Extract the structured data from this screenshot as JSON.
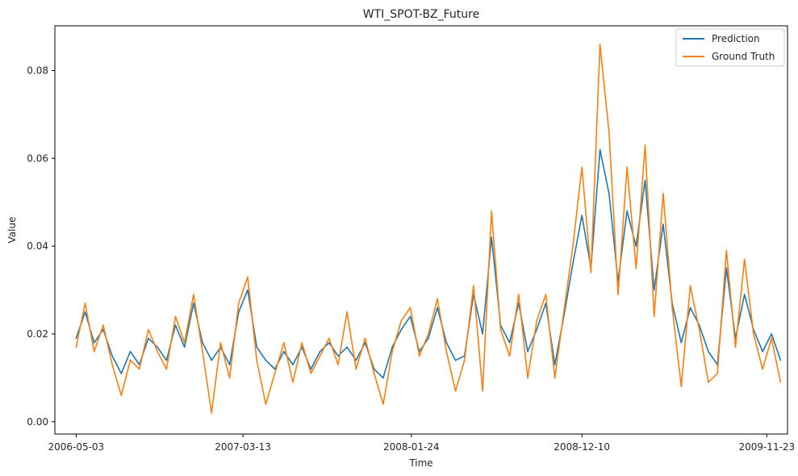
{
  "chart_data": {
    "type": "line",
    "title": "WTI_SPOT-BZ_Future",
    "xlabel": "Time",
    "ylabel": "Value",
    "x_tick_labels": [
      "2006-05-03",
      "2007-03-13",
      "2008-01-24",
      "2008-12-10",
      "2009-11-23"
    ],
    "y_tick_labels": [
      "0.00",
      "0.02",
      "0.04",
      "0.06",
      "0.08"
    ],
    "y_ticks": [
      0.0,
      0.02,
      0.04,
      0.06,
      0.08
    ],
    "ylim": [
      -0.0028,
      0.0902
    ],
    "xlim": [
      "2006-03-24",
      "2010-01-01"
    ],
    "grid": false,
    "legend_position": "top-right",
    "colors": {
      "Prediction": "#1f77b4",
      "Ground Truth": "#ff7f0e"
    },
    "series": [
      {
        "name": "Prediction",
        "color": "#1f77b4",
        "x": [
          "2006-05-03",
          "2006-05-20",
          "2006-06-06",
          "2006-06-23",
          "2006-07-10",
          "2006-07-27",
          "2006-08-13",
          "2006-08-30",
          "2006-09-16",
          "2006-10-03",
          "2006-10-20",
          "2006-11-06",
          "2006-11-23",
          "2006-12-10",
          "2006-12-27",
          "2007-01-13",
          "2007-01-30",
          "2007-02-16",
          "2007-03-05",
          "2007-03-22",
          "2007-04-08",
          "2007-04-25",
          "2007-05-12",
          "2007-05-29",
          "2007-06-15",
          "2007-07-02",
          "2007-07-19",
          "2007-08-05",
          "2007-08-22",
          "2007-09-08",
          "2007-09-25",
          "2007-10-12",
          "2007-10-29",
          "2007-11-15",
          "2007-12-02",
          "2007-12-19",
          "2008-01-05",
          "2008-01-22",
          "2008-02-08",
          "2008-02-25",
          "2008-03-13",
          "2008-03-30",
          "2008-04-16",
          "2008-05-03",
          "2008-05-20",
          "2008-06-06",
          "2008-06-23",
          "2008-07-10",
          "2008-07-27",
          "2008-08-13",
          "2008-08-30",
          "2008-09-16",
          "2008-10-03",
          "2008-10-20",
          "2008-11-06",
          "2008-11-23",
          "2008-12-10",
          "2008-12-27",
          "2009-01-13",
          "2009-01-30",
          "2009-02-16",
          "2009-03-05",
          "2009-03-22",
          "2009-04-08",
          "2009-04-25",
          "2009-05-12",
          "2009-05-29",
          "2009-06-15",
          "2009-07-02",
          "2009-07-19",
          "2009-08-05",
          "2009-08-22",
          "2009-09-08",
          "2009-09-25",
          "2009-10-12",
          "2009-10-29",
          "2009-11-15",
          "2009-12-02",
          "2009-12-19"
        ],
        "values": [
          0.019,
          0.025,
          0.018,
          0.021,
          0.015,
          0.011,
          0.016,
          0.013,
          0.019,
          0.017,
          0.014,
          0.022,
          0.017,
          0.027,
          0.018,
          0.014,
          0.017,
          0.013,
          0.025,
          0.03,
          0.017,
          0.014,
          0.012,
          0.016,
          0.013,
          0.017,
          0.012,
          0.016,
          0.018,
          0.015,
          0.017,
          0.014,
          0.018,
          0.012,
          0.01,
          0.017,
          0.021,
          0.024,
          0.016,
          0.019,
          0.026,
          0.018,
          0.014,
          0.015,
          0.029,
          0.02,
          0.042,
          0.022,
          0.018,
          0.027,
          0.016,
          0.021,
          0.027,
          0.013,
          0.024,
          0.036,
          0.047,
          0.035,
          0.062,
          0.052,
          0.032,
          0.048,
          0.04,
          0.055,
          0.03,
          0.045,
          0.027,
          0.018,
          0.026,
          0.022,
          0.016,
          0.013,
          0.035,
          0.019,
          0.029,
          0.021,
          0.016,
          0.02,
          0.014
        ]
      },
      {
        "name": "Ground Truth",
        "color": "#ff7f0e",
        "x": [
          "2006-05-03",
          "2006-05-20",
          "2006-06-06",
          "2006-06-23",
          "2006-07-10",
          "2006-07-27",
          "2006-08-13",
          "2006-08-30",
          "2006-09-16",
          "2006-10-03",
          "2006-10-20",
          "2006-11-06",
          "2006-11-23",
          "2006-12-10",
          "2006-12-27",
          "2007-01-13",
          "2007-01-30",
          "2007-02-16",
          "2007-03-05",
          "2007-03-22",
          "2007-04-08",
          "2007-04-25",
          "2007-05-12",
          "2007-05-29",
          "2007-06-15",
          "2007-07-02",
          "2007-07-19",
          "2007-08-05",
          "2007-08-22",
          "2007-09-08",
          "2007-09-25",
          "2007-10-12",
          "2007-10-29",
          "2007-11-15",
          "2007-12-02",
          "2007-12-19",
          "2008-01-05",
          "2008-01-22",
          "2008-02-08",
          "2008-02-25",
          "2008-03-13",
          "2008-03-30",
          "2008-04-16",
          "2008-05-03",
          "2008-05-20",
          "2008-06-06",
          "2008-06-23",
          "2008-07-10",
          "2008-07-27",
          "2008-08-13",
          "2008-08-30",
          "2008-09-16",
          "2008-10-03",
          "2008-10-20",
          "2008-11-06",
          "2008-11-23",
          "2008-12-10",
          "2008-12-27",
          "2009-01-13",
          "2009-01-30",
          "2009-02-16",
          "2009-03-05",
          "2009-03-22",
          "2009-04-08",
          "2009-04-25",
          "2009-05-12",
          "2009-05-29",
          "2009-06-15",
          "2009-07-02",
          "2009-07-19",
          "2009-08-05",
          "2009-08-22",
          "2009-09-08",
          "2009-09-25",
          "2009-10-12",
          "2009-10-29",
          "2009-11-15",
          "2009-12-02",
          "2009-12-19"
        ],
        "values": [
          0.017,
          0.027,
          0.016,
          0.022,
          0.013,
          0.006,
          0.014,
          0.012,
          0.021,
          0.016,
          0.012,
          0.024,
          0.018,
          0.029,
          0.016,
          0.002,
          0.018,
          0.01,
          0.027,
          0.033,
          0.014,
          0.004,
          0.011,
          0.018,
          0.009,
          0.018,
          0.011,
          0.015,
          0.019,
          0.013,
          0.025,
          0.012,
          0.019,
          0.011,
          0.004,
          0.016,
          0.023,
          0.026,
          0.015,
          0.02,
          0.028,
          0.016,
          0.007,
          0.014,
          0.031,
          0.007,
          0.048,
          0.021,
          0.015,
          0.029,
          0.01,
          0.023,
          0.029,
          0.01,
          0.025,
          0.04,
          0.058,
          0.034,
          0.086,
          0.066,
          0.029,
          0.058,
          0.035,
          0.063,
          0.024,
          0.052,
          0.026,
          0.008,
          0.031,
          0.021,
          0.009,
          0.011,
          0.039,
          0.017,
          0.037,
          0.02,
          0.012,
          0.019,
          0.009
        ]
      }
    ]
  }
}
